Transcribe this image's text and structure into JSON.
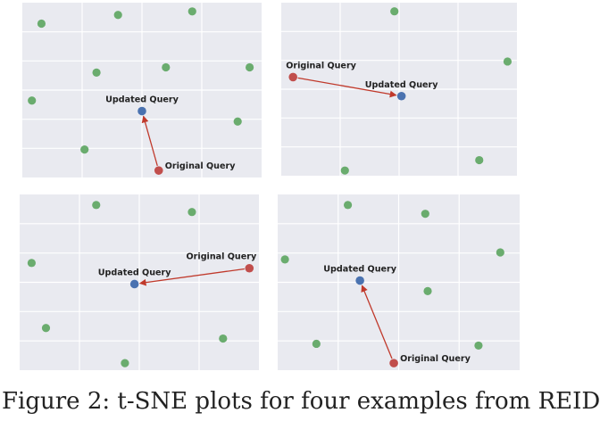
{
  "colors": {
    "background": "#e9eaf0",
    "grid": "#ffffff",
    "other": "#6aac6e",
    "updated": "#4a72b0",
    "original": "#c14e4c",
    "arrow": "#c0392b"
  },
  "caption": "Figure 2: t-SNE plots for four examples from REID",
  "chart_data": [
    {
      "type": "scatter",
      "xlim": [
        0,
        100
      ],
      "ylim": [
        0,
        100
      ],
      "grid": true,
      "points": [
        [
          8,
          88
        ],
        [
          40,
          93
        ],
        [
          71,
          95
        ],
        [
          31,
          60
        ],
        [
          60,
          63
        ],
        [
          95,
          63
        ],
        [
          4,
          44
        ],
        [
          26,
          16
        ],
        [
          90,
          32
        ]
      ],
      "updated": {
        "label": "Updated Query",
        "x": 50,
        "y": 38
      },
      "original": {
        "label": "Original Query",
        "x": 57,
        "y": 4
      }
    },
    {
      "type": "scatter",
      "xlim": [
        0,
        100
      ],
      "ylim": [
        0,
        100
      ],
      "grid": true,
      "points": [
        [
          48,
          95
        ],
        [
          96,
          66
        ],
        [
          27,
          3
        ],
        [
          84,
          9
        ]
      ],
      "updated": {
        "label": "Updated Query",
        "x": 51,
        "y": 46
      },
      "original": {
        "label": "Original Query",
        "x": 5,
        "y": 57
      }
    },
    {
      "type": "scatter",
      "xlim": [
        0,
        100
      ],
      "ylim": [
        0,
        100
      ],
      "grid": true,
      "points": [
        [
          32,
          94
        ],
        [
          72,
          90
        ],
        [
          5,
          61
        ],
        [
          11,
          24
        ],
        [
          85,
          18
        ],
        [
          44,
          4
        ]
      ],
      "updated": {
        "label": "Updated Query",
        "x": 48,
        "y": 49
      },
      "original": {
        "label": "Original Query",
        "x": 96,
        "y": 58
      }
    },
    {
      "type": "scatter",
      "xlim": [
        0,
        100
      ],
      "ylim": [
        0,
        100
      ],
      "grid": true,
      "points": [
        [
          29,
          94
        ],
        [
          61,
          89
        ],
        [
          3,
          63
        ],
        [
          92,
          67
        ],
        [
          62,
          45
        ],
        [
          16,
          15
        ],
        [
          83,
          14
        ]
      ],
      "updated": {
        "label": "Updated Query",
        "x": 34,
        "y": 51
      },
      "original": {
        "label": "Original Query",
        "x": 48,
        "y": 4
      }
    }
  ]
}
